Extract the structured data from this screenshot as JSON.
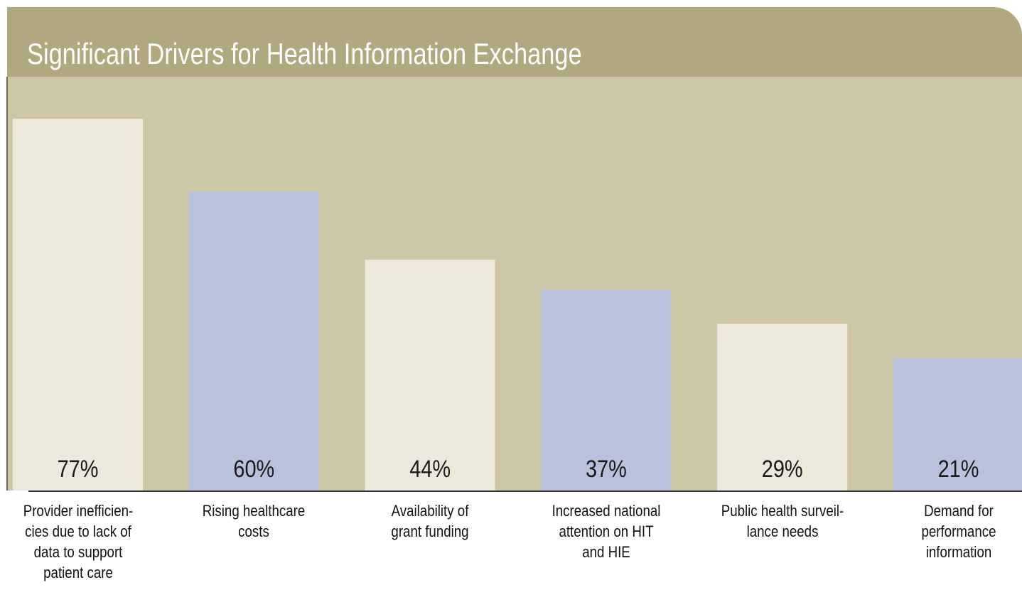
{
  "chart_data": {
    "type": "bar",
    "title": "Significant Drivers for Health Information Exchange",
    "categories": [
      "Provider inefficien-\ncies due to lack of\ndata to support\npatient care",
      "Rising healthcare\ncosts",
      "Availability of\ngrant funding",
      "Increased national\nattention on HIT\nand HIE",
      "Public health surveil-\nlance needs",
      "Demand for\nperformance\ninformation"
    ],
    "values": [
      77,
      60,
      44,
      37,
      29,
      21
    ],
    "value_labels": [
      "77%",
      "60%",
      "44%",
      "37%",
      "29%",
      "21%"
    ],
    "colors": [
      "#ece9dc",
      "#b8c2dc",
      "#ece9dc",
      "#b8c2dc",
      "#ece9dc",
      "#b8c2dc"
    ],
    "ylim": [
      -10,
      80
    ]
  }
}
